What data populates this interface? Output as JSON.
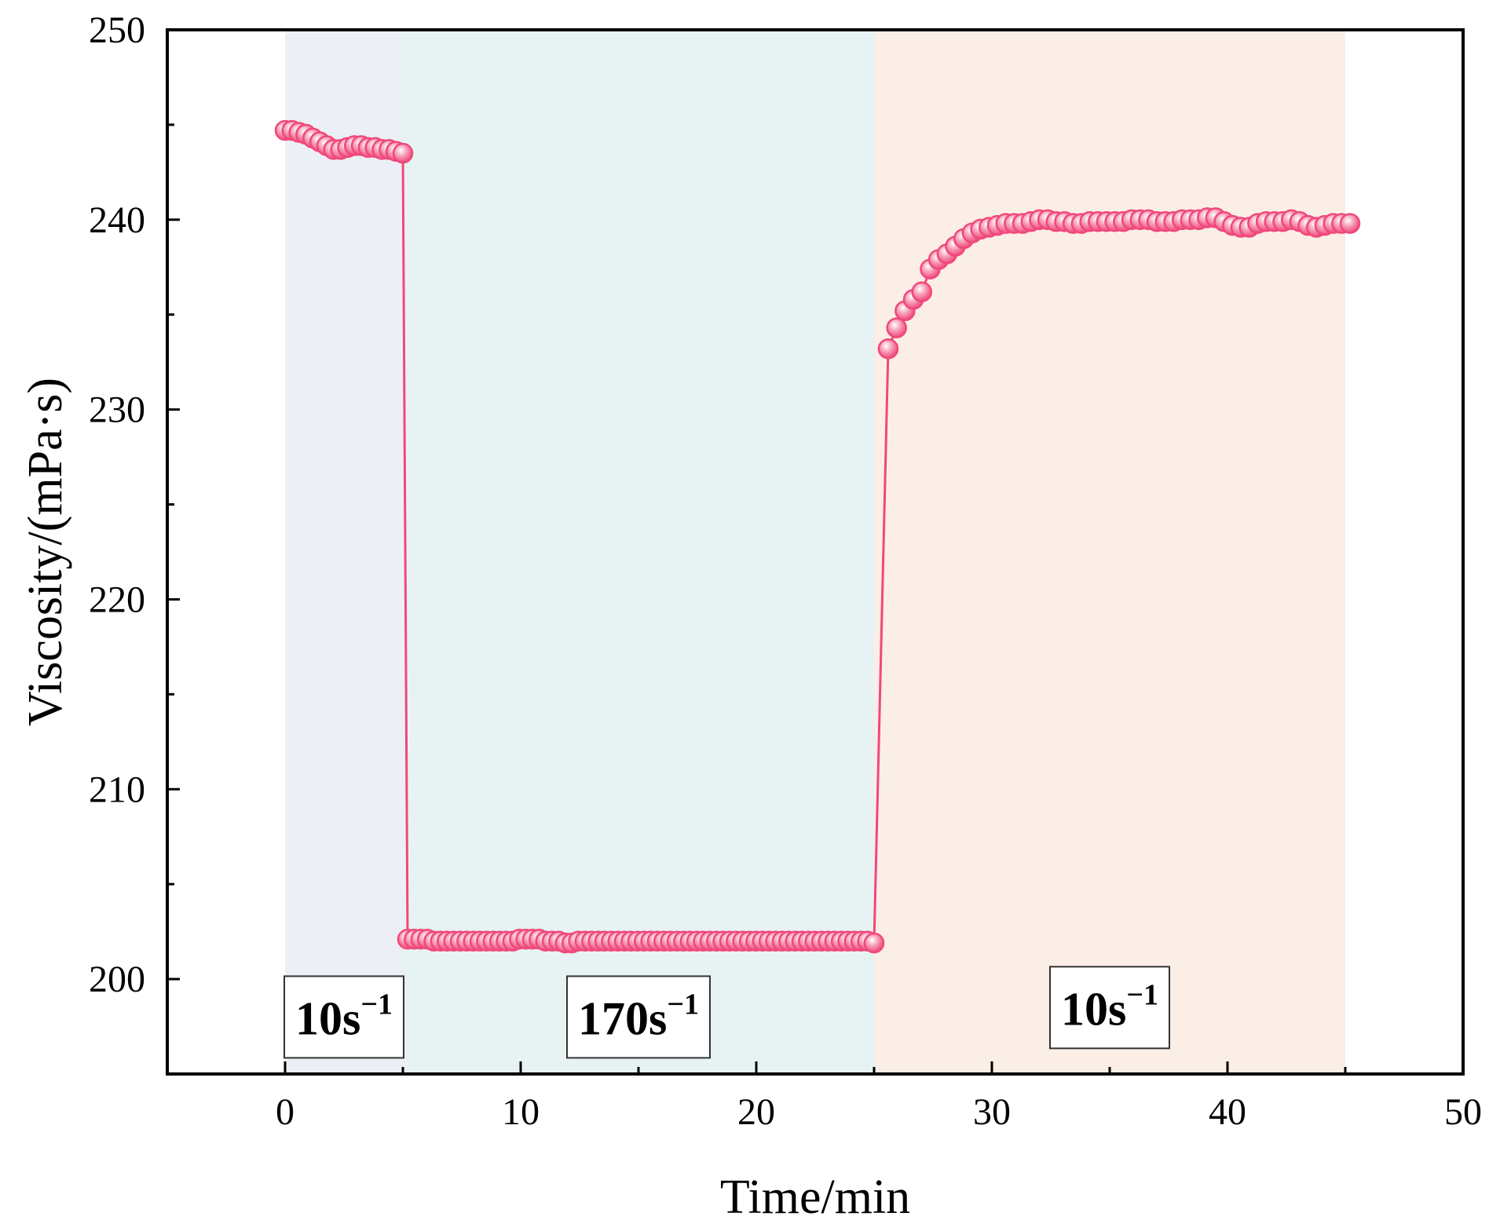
{
  "chart_data": {
    "type": "scatter",
    "title": "",
    "xlabel": "Time/min",
    "ylabel": "Viscosity/(mPa·s)",
    "xlim": [
      -5,
      50
    ],
    "ylim": [
      195,
      250
    ],
    "x_ticks": [
      0,
      10,
      20,
      30,
      40,
      50
    ],
    "y_ticks": [
      200,
      210,
      220,
      230,
      240,
      250
    ],
    "grid": false,
    "legend": "none",
    "series_color": "#f0487a",
    "marker_fill": "#f7a3bd",
    "regions": [
      {
        "x_start": 0,
        "x_end": 5,
        "color": "#eceff5",
        "label_main": "10s",
        "label_sup": "−1",
        "label_y": 198
      },
      {
        "x_start": 5,
        "x_end": 25,
        "color": "#e7f3f2",
        "label_main": "170s",
        "label_sup": "−1",
        "label_y": 198
      },
      {
        "x_start": 25,
        "x_end": 45,
        "color": "#fbeee6",
        "label_main": "10s",
        "label_sup": "−1",
        "label_y": 198.5
      }
    ],
    "series": [
      {
        "segments": [
          {
            "x_start": 0,
            "x_end": 5,
            "values": [
              244.7,
              244.7,
              244.6,
              244.5,
              244.3,
              244.1,
              243.9,
              243.7,
              243.7,
              243.8,
              243.9,
              243.9,
              243.8,
              243.8,
              243.7,
              243.7,
              243.6,
              243.5
            ]
          },
          {
            "x_start": 5.2,
            "x_end": 25,
            "values": [
              202.1,
              202.1,
              202.1,
              202.1,
              202.0,
              202.0,
              202.0,
              202.0,
              202.0,
              202.0,
              202.0,
              202.0,
              202.0,
              202.0,
              202.0,
              202.0,
              202.0,
              202.1,
              202.1,
              202.1,
              202.1,
              202.0,
              202.0,
              202.0,
              201.9,
              201.9,
              202.0,
              202.0,
              202.0,
              202.0,
              202.0,
              202.0,
              202.0,
              202.0,
              202.0,
              202.0,
              202.0,
              202.0,
              202.0,
              202.0,
              202.0,
              202.0,
              202.0,
              202.0,
              202.0,
              202.0,
              202.0,
              202.0,
              202.0,
              202.0,
              202.0,
              202.0,
              202.0,
              202.0,
              202.0,
              202.0,
              202.0,
              202.0,
              202.0,
              202.0,
              202.0,
              202.0,
              202.0,
              202.0,
              202.0,
              202.0,
              202.0,
              202.0,
              202.0,
              202.0,
              202.0,
              201.9
            ]
          },
          {
            "x_start": 25.6,
            "x_end": 45.2,
            "values": [
              233.2,
              234.3,
              235.2,
              235.8,
              236.2,
              237.4,
              237.9,
              238.2,
              238.6,
              239.0,
              239.3,
              239.5,
              239.6,
              239.7,
              239.8,
              239.8,
              239.8,
              239.9,
              240.0,
              240.0,
              239.9,
              239.9,
              239.8,
              239.8,
              239.9,
              239.9,
              239.9,
              239.9,
              239.9,
              240.0,
              240.0,
              240.0,
              239.9,
              239.9,
              239.9,
              240.0,
              240.0,
              240.0,
              240.1,
              240.1,
              239.9,
              239.7,
              239.6,
              239.6,
              239.8,
              239.9,
              239.9,
              239.9,
              240.0,
              239.9,
              239.7,
              239.6,
              239.7,
              239.8,
              239.8,
              239.8
            ]
          }
        ]
      }
    ]
  }
}
